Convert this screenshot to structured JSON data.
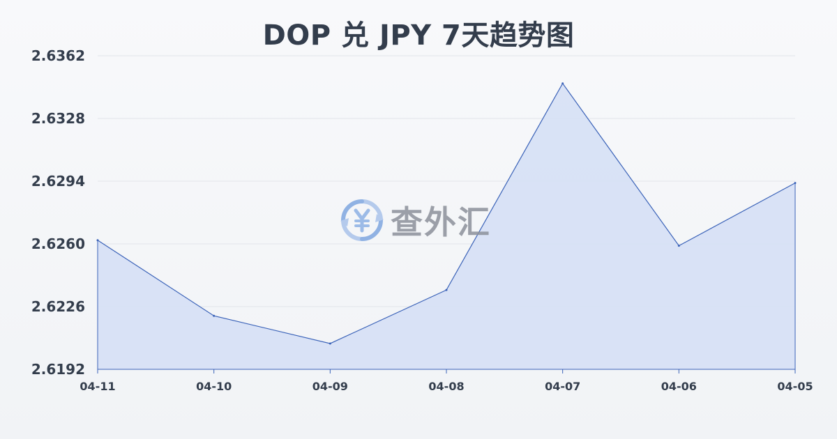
{
  "chart_data": {
    "type": "area",
    "title": "DOP 兑 JPY 7天趋势图",
    "xlabel": "",
    "ylabel": "",
    "categories": [
      "04-11",
      "04-10",
      "04-09",
      "04-08",
      "04-07",
      "04-06",
      "04-05"
    ],
    "series": [
      {
        "values": [
          2.6262,
          2.6221,
          2.6206,
          2.6235,
          2.6347,
          2.6259,
          2.6293
        ]
      }
    ],
    "yticks": [
      "2.6362",
      "2.6328",
      "2.6294",
      "2.6260",
      "2.6226",
      "2.6192"
    ],
    "ylim": [
      2.6192,
      2.6362
    ],
    "grid": true,
    "legend": "none",
    "colors": {
      "line": "#3a62b8",
      "fill": "#d6e0f5",
      "grid": "#e2e5ea",
      "text": "#333d4c"
    }
  },
  "watermark": {
    "text": "查外汇",
    "icon": "yen-exchange-icon"
  }
}
